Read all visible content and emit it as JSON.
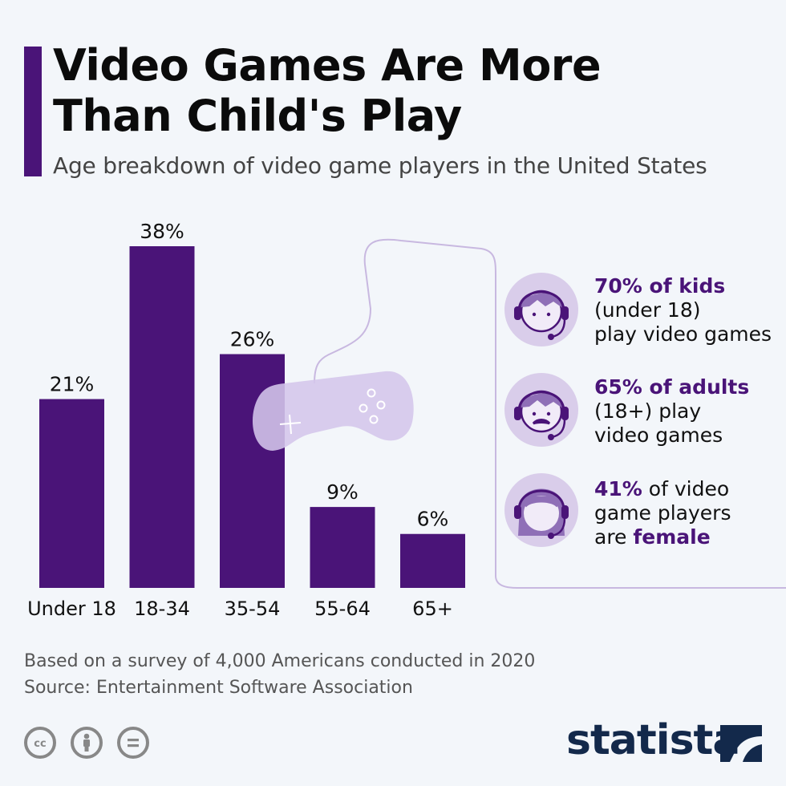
{
  "header": {
    "title_line1": "Video Games Are More",
    "title_line2": "Than Child's Play",
    "subtitle": "Age breakdown of video game players in the United States"
  },
  "chart_data": {
    "type": "bar",
    "categories": [
      "Under 18",
      "18-34",
      "35-54",
      "55-64",
      "65+"
    ],
    "values": [
      21,
      38,
      26,
      9,
      6
    ],
    "value_labels": [
      "21%",
      "38%",
      "26%",
      "9%",
      "6%"
    ],
    "title": "Video Games Are More Than Child's Play",
    "subtitle": "Age breakdown of video game players in the United States",
    "ylim": [
      0,
      38
    ],
    "grid": false,
    "bar_color": "#4a1478"
  },
  "facts": [
    {
      "icon": "boy-headset-icon",
      "highlight": "70% of kids",
      "line2": "(under 18)",
      "line3": "play video games"
    },
    {
      "icon": "man-headset-icon",
      "highlight": "65% of adults",
      "line2": "(18+) play",
      "line3": "video games"
    },
    {
      "icon": "woman-headset-icon",
      "highlight": "41%",
      "line1_rest": " of video",
      "line2": "game players",
      "line3_prefix": "are ",
      "line3_highlight": "female"
    }
  ],
  "footer": {
    "note": "Based on a survey of 4,000 Americans conducted in 2020",
    "source": "Source: Entertainment Software Association",
    "brand": "statista"
  },
  "colors": {
    "accent": "#4a1478",
    "icon_circle": "#d9cdea",
    "background": "#f3f6fa",
    "brand": "#13294b"
  }
}
